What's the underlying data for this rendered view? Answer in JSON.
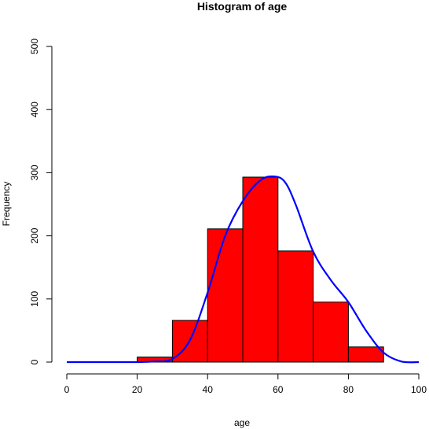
{
  "chart_data": {
    "type": "bar",
    "title": "Histogram of age",
    "xlabel": "age",
    "ylabel": "Frequency",
    "bin_edges": [
      20,
      30,
      40,
      50,
      60,
      70,
      80,
      90
    ],
    "values": [
      8,
      66,
      211,
      293,
      176,
      95,
      24
    ],
    "bar_color": "#ff0000",
    "curve_color": "#0000ff",
    "xlim": [
      0,
      100
    ],
    "ylim": [
      0,
      500
    ],
    "xticks": [
      0,
      20,
      40,
      60,
      80,
      100
    ],
    "yticks": [
      0,
      100,
      200,
      300,
      400,
      500
    ],
    "density_curve": {
      "x": [
        0,
        10,
        20,
        25,
        30,
        35,
        40,
        45,
        50,
        55,
        59,
        62,
        65,
        70,
        75,
        80,
        85,
        90,
        95,
        100
      ],
      "y": [
        0,
        0,
        0,
        1,
        5,
        35,
        110,
        200,
        255,
        288,
        294,
        285,
        250,
        175,
        130,
        95,
        50,
        15,
        1,
        0
      ]
    }
  }
}
